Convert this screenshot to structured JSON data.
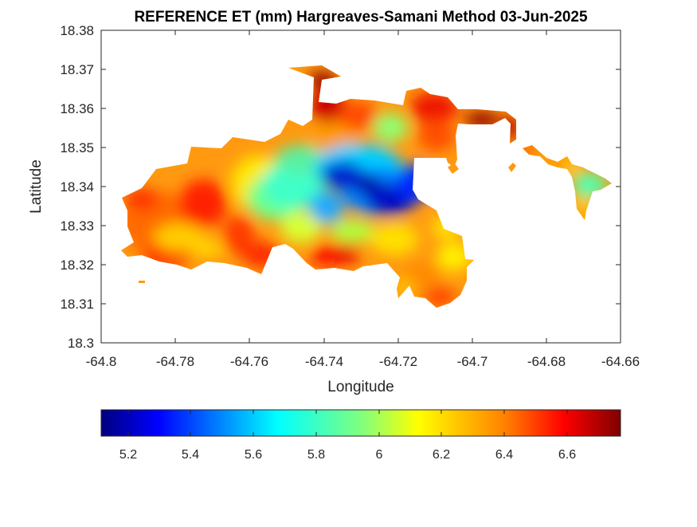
{
  "title": "REFERENCE ET (mm) Hargreaves-Samani Method  03-Jun-2025",
  "x_axis": {
    "label": "Longitude",
    "ticks": [
      "-64.8",
      "-64.78",
      "-64.76",
      "-64.74",
      "-64.72",
      "-64.7",
      "-64.68",
      "-64.66"
    ]
  },
  "y_axis": {
    "label": "Latitude",
    "ticks": [
      "18.3",
      "18.31",
      "18.32",
      "18.33",
      "18.34",
      "18.35",
      "18.36",
      "18.37",
      "18.38"
    ]
  },
  "colorbar": {
    "colormap": "jet",
    "range": [
      5.11,
      6.77
    ],
    "ticks": [
      "5.2",
      "5.4",
      "5.6",
      "5.8",
      "6",
      "6.2",
      "6.4",
      "6.6"
    ]
  },
  "chart_data": {
    "type": "heatmap",
    "title": "REFERENCE ET (mm) Hargreaves-Samani Method  03-Jun-2025",
    "xlabel": "Longitude",
    "ylabel": "Latitude",
    "xlim": [
      -64.8,
      -64.66
    ],
    "ylim": [
      18.3,
      18.38
    ],
    "grid": false,
    "color_scale": {
      "colormap": "jet",
      "min": 5.11,
      "max": 6.77
    },
    "value_range_observed": [
      5.11,
      6.77
    ],
    "low_centers": [
      {
        "lon": -64.738,
        "lat": 18.342,
        "value": 5.2
      },
      {
        "lon": -64.726,
        "lat": 18.336,
        "value": 5.15
      }
    ],
    "high_centers": [
      {
        "lon": -64.741,
        "lat": 18.365,
        "value": 6.7
      },
      {
        "lon": -64.702,
        "lat": 18.357,
        "value": 6.75
      },
      {
        "lon": -64.72,
        "lat": 18.361,
        "value": 6.55
      },
      {
        "lon": -64.748,
        "lat": 18.324,
        "value": 6.55
      },
      {
        "lon": -64.734,
        "lat": 18.323,
        "value": 6.5
      },
      {
        "lon": -64.773,
        "lat": 18.337,
        "value": 6.55
      },
      {
        "lon": -64.788,
        "lat": 18.323,
        "value": 6.5
      }
    ]
  }
}
